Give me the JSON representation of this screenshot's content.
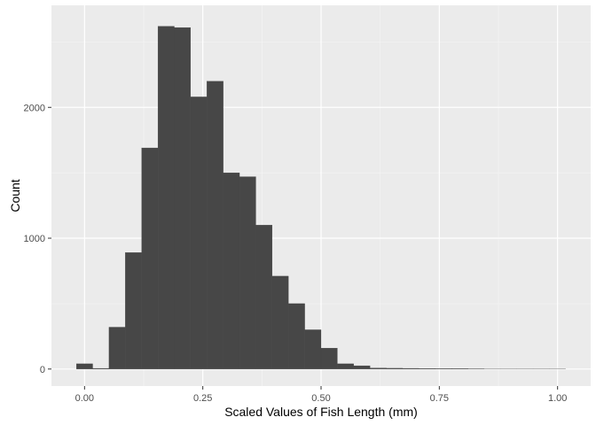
{
  "chart_data": {
    "type": "bar",
    "title": "",
    "xlabel": "Scaled Values of Fish Length (mm)",
    "ylabel": "Count",
    "xlim": [
      -0.07,
      1.07
    ],
    "ylim": [
      -130,
      2780
    ],
    "x_ticks": [
      0,
      0.25,
      0.5,
      0.75,
      1
    ],
    "x_tick_labels": [
      "0.00",
      "0.25",
      "0.50",
      "0.75",
      "1.00"
    ],
    "y_ticks": [
      0,
      1000,
      2000
    ],
    "y_tick_labels": [
      "0",
      "1000",
      "2000"
    ],
    "grid": true,
    "legend": "none",
    "bin_width": 0.03448,
    "bins": [
      {
        "x0": -0.0172,
        "x1": 0.0172,
        "count": 40
      },
      {
        "x0": 0.0172,
        "x1": 0.0517,
        "count": 5
      },
      {
        "x0": 0.0517,
        "x1": 0.0862,
        "count": 320
      },
      {
        "x0": 0.0862,
        "x1": 0.1207,
        "count": 890
      },
      {
        "x0": 0.1207,
        "x1": 0.1552,
        "count": 1690
      },
      {
        "x0": 0.1552,
        "x1": 0.1897,
        "count": 2620
      },
      {
        "x0": 0.1897,
        "x1": 0.2241,
        "count": 2610
      },
      {
        "x0": 0.2241,
        "x1": 0.2586,
        "count": 2080
      },
      {
        "x0": 0.2586,
        "x1": 0.2931,
        "count": 2200
      },
      {
        "x0": 0.2931,
        "x1": 0.3276,
        "count": 1500
      },
      {
        "x0": 0.3276,
        "x1": 0.3621,
        "count": 1470
      },
      {
        "x0": 0.3621,
        "x1": 0.3966,
        "count": 1100
      },
      {
        "x0": 0.3966,
        "x1": 0.431,
        "count": 710
      },
      {
        "x0": 0.431,
        "x1": 0.4655,
        "count": 500
      },
      {
        "x0": 0.4655,
        "x1": 0.5,
        "count": 300
      },
      {
        "x0": 0.5,
        "x1": 0.5345,
        "count": 160
      },
      {
        "x0": 0.5345,
        "x1": 0.569,
        "count": 40
      },
      {
        "x0": 0.569,
        "x1": 0.6034,
        "count": 25
      },
      {
        "x0": 0.6034,
        "x1": 0.6379,
        "count": 8
      },
      {
        "x0": 0.6379,
        "x1": 0.6724,
        "count": 6
      },
      {
        "x0": 0.6724,
        "x1": 0.7069,
        "count": 5
      },
      {
        "x0": 0.7069,
        "x1": 0.7414,
        "count": 4
      },
      {
        "x0": 0.7414,
        "x1": 0.7759,
        "count": 3
      },
      {
        "x0": 0.7759,
        "x1": 0.8103,
        "count": 3
      },
      {
        "x0": 0.8103,
        "x1": 0.8448,
        "count": 2
      },
      {
        "x0": 0.8448,
        "x1": 0.8793,
        "count": 1
      },
      {
        "x0": 0.8793,
        "x1": 0.9138,
        "count": 1
      },
      {
        "x0": 0.9138,
        "x1": 0.9483,
        "count": 1
      },
      {
        "x0": 0.9483,
        "x1": 0.9828,
        "count": 1
      },
      {
        "x0": 0.9828,
        "x1": 1.0172,
        "count": 1
      }
    ],
    "colors": {
      "panel_background": "#ebebeb",
      "grid_major": "#ffffff",
      "grid_minor": "#f5f5f5",
      "bar_fill": "#474747",
      "tick_mark": "#333333",
      "tick_text": "#4d4d4d",
      "axis_title": "#000000"
    }
  }
}
